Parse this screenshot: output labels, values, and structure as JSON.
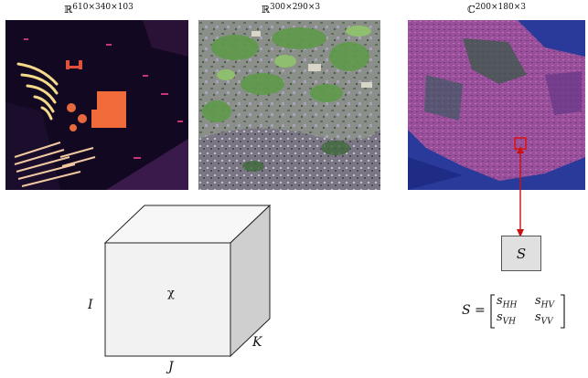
{
  "panels": [
    {
      "set": "ℝ",
      "dims": "610×340×103"
    },
    {
      "set": "ℝ",
      "dims": "300×290×3"
    },
    {
      "set": "ℂ",
      "dims": "200×180×3"
    }
  ],
  "tensor": {
    "symbol": "χ",
    "dim_i": "I",
    "dim_j": "J",
    "dim_k": "K"
  },
  "pixel_box": {
    "symbol": "S"
  },
  "equation": {
    "lhs": "S =",
    "entries": [
      {
        "base": "s",
        "sub": "HH"
      },
      {
        "base": "s",
        "sub": "HV"
      },
      {
        "base": "s",
        "sub": "VH"
      },
      {
        "base": "s",
        "sub": "VV"
      }
    ]
  },
  "colors": {
    "arrow": "#cc1111",
    "cube_front": "#f2f2f2",
    "cube_top": "#f7f7f7",
    "cube_side": "#cfcfcf"
  }
}
